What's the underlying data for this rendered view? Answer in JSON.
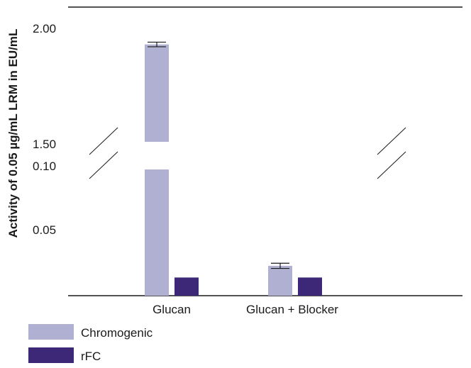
{
  "chart_data": {
    "type": "bar",
    "ylabel": "Activity of 0.05 µg/mL LRM in EU/mL",
    "xlabel": "",
    "axis_break": {
      "lower_top": 0.1,
      "upper_bottom": 1.5
    },
    "ylim": [
      0,
      2.1
    ],
    "yticks": [
      "2.00",
      "1.50",
      "0.10",
      "0.05"
    ],
    "ytick_values": [
      2.0,
      1.5,
      0.1,
      0.05
    ],
    "categories": [
      "Glucan",
      "Glucan + Blocker"
    ],
    "series": [
      {
        "name": "Chromogenic",
        "color": "#b0b0d2",
        "values": [
          1.93,
          0.023
        ],
        "error": [
          0.01,
          0.002
        ]
      },
      {
        "name": "rFC",
        "color": "#3d2878",
        "values": [
          0.014,
          0.014
        ],
        "error": [
          null,
          null
        ]
      }
    ],
    "legend_position": "bottom-left"
  }
}
